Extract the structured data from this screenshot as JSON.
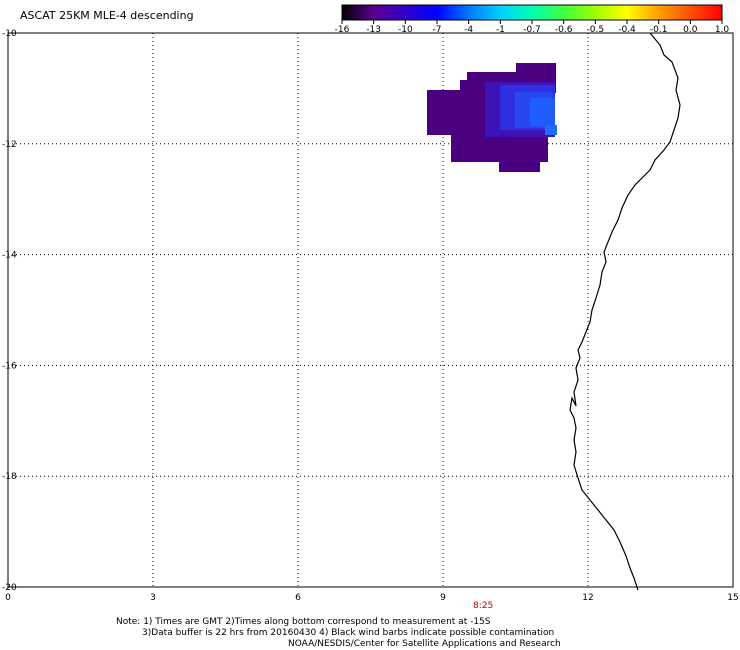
{
  "title": "ASCAT 25KM MLE-4 descending",
  "colorbar": {
    "labels": [
      "-16",
      "-13",
      "-10",
      "-7",
      "-4",
      "-1",
      "-0.7",
      "-0.6",
      "-0.5",
      "-0.4",
      "-0.1",
      "0.0",
      "1.0"
    ],
    "colors": [
      "#000000",
      "#5a0090",
      "#3000c8",
      "#0000ff",
      "#0078ff",
      "#00d0ff",
      "#00ffb0",
      "#40ff40",
      "#a0ff00",
      "#ffff00",
      "#ffa000",
      "#ff5000",
      "#ff0000"
    ]
  },
  "map": {
    "lon_range": [
      0,
      15
    ],
    "lat_range": [
      -20,
      -10
    ],
    "x_ticks": [
      "0",
      "3",
      "6",
      "9",
      "12",
      "15"
    ],
    "y_ticks": [
      "-10",
      "-12",
      "-14",
      "-16",
      "-18",
      "-20"
    ],
    "grid": "dotted"
  },
  "pass_time": "8:25",
  "notes": {
    "line1": "Note: 1) Times are GMT 2)Times along bottom correspond to measurement at -15S",
    "line2": "3)Data buffer is 22 hrs from 20160430 4) Black wind barbs indicate possible contamination",
    "line3": "NOAA/NESDIS/Center for Satellite Applications and Research"
  },
  "swath_colors": {
    "dark": "#4b0082",
    "mid": "#3a1cd8",
    "bright": "#1f5cff"
  }
}
